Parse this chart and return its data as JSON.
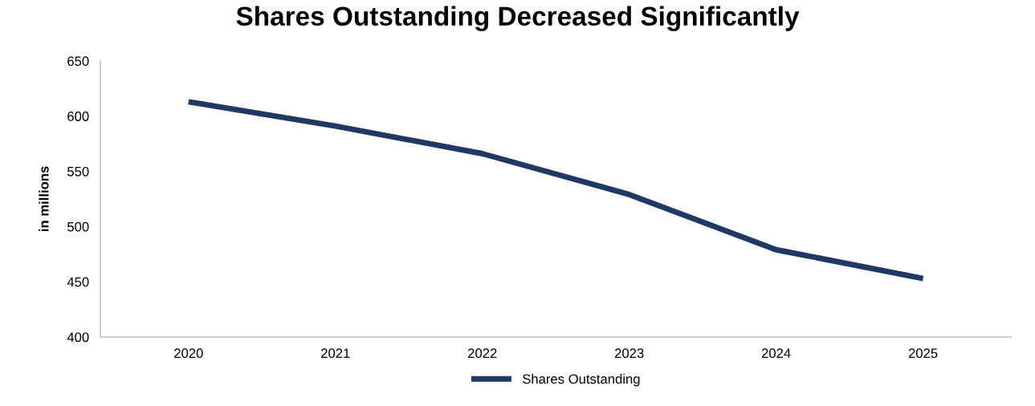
{
  "chart_data": {
    "type": "line",
    "title": "Shares Outstanding Decreased Significantly",
    "ylabel": "in millions",
    "categories": [
      "2020",
      "2021",
      "2022",
      "2023",
      "2024",
      "2025"
    ],
    "series": [
      {
        "name": "Shares Outstanding",
        "color": "#1f3864",
        "values": [
          613,
          591,
          566,
          529,
          479,
          453
        ]
      }
    ],
    "ylim": [
      400,
      650
    ],
    "yticks": [
      400,
      450,
      500,
      550,
      600,
      650
    ],
    "grid": false,
    "legend": "bottom",
    "marker": "none",
    "line_style": "solid"
  }
}
